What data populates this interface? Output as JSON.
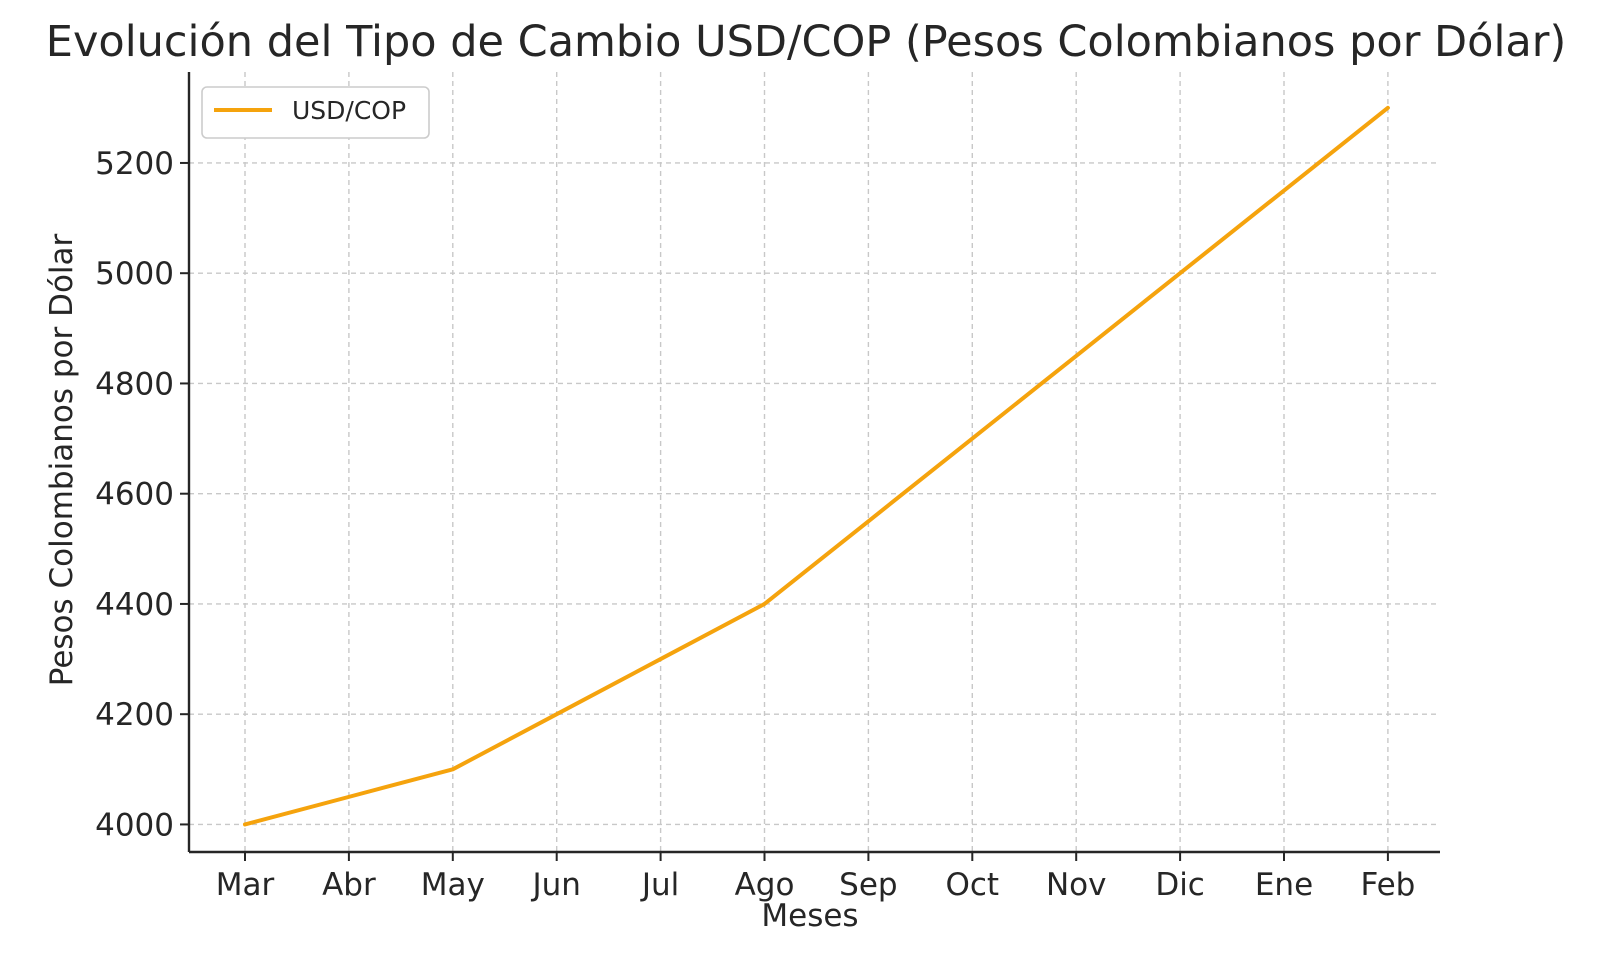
{
  "chart_data": {
    "type": "line",
    "title": "Evolución del Tipo de Cambio USD/COP (Pesos Colombianos por Dólar)",
    "xlabel": "Meses",
    "ylabel": "Pesos Colombianos por Dólar",
    "categories": [
      "Mar",
      "Abr",
      "May",
      "Jun",
      "Jul",
      "Ago",
      "Sep",
      "Oct",
      "Nov",
      "Dic",
      "Ene",
      "Feb"
    ],
    "series": [
      {
        "name": "USD/COP",
        "color": "#f5a30d",
        "values": [
          4000,
          4050,
          4100,
          4200,
          4300,
          4400,
          4550,
          4700,
          4850,
          5000,
          5150,
          5300
        ]
      }
    ],
    "ylim": [
      3950,
      5365
    ],
    "yticks": [
      4000,
      4200,
      4400,
      4600,
      4800,
      5000,
      5200
    ],
    "grid": true,
    "legend_position": "top-left"
  }
}
